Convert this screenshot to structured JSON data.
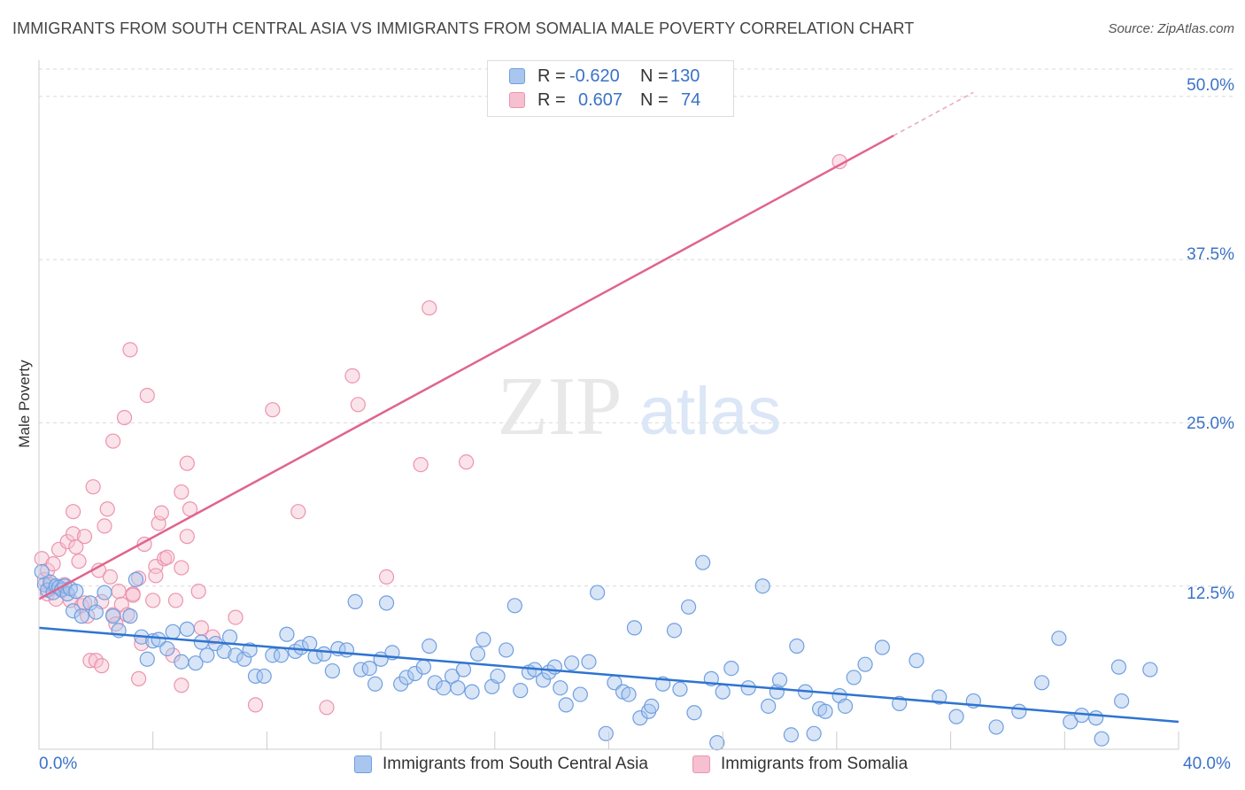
{
  "title": "IMMIGRANTS FROM SOUTH CENTRAL ASIA VS IMMIGRANTS FROM SOMALIA MALE POVERTY CORRELATION CHART",
  "source": "Source: ZipAtlas.com",
  "watermark": {
    "zip": "ZIP",
    "atlas": "atlas"
  },
  "legend": {
    "rows": [
      {
        "r_label": "R =",
        "r_value": "-0.620",
        "n_label": "N =",
        "n_value": "130"
      },
      {
        "r_label": "R =",
        "r_value": "0.607",
        "n_label": "N =",
        "n_value": "74"
      }
    ]
  },
  "colors": {
    "blue_fill": "#a9c6ee",
    "blue_stroke": "#6f9fe0",
    "blue_line": "#2f74d0",
    "pink_fill": "#f6c0d0",
    "pink_stroke": "#ec94b0",
    "pink_line": "#e0648e",
    "grid": "#d9d9d9",
    "tick_text": "#3a72c8"
  },
  "chart_data": {
    "type": "scatter",
    "title": "IMMIGRANTS FROM SOUTH CENTRAL ASIA VS IMMIGRANTS FROM SOMALIA MALE POVERTY CORRELATION CHART",
    "xlabel": "",
    "ylabel": "Male Poverty",
    "xlim": [
      0,
      40
    ],
    "ylim": [
      0,
      52.5
    ],
    "x_tick_labels": [
      "0.0%",
      "40.0%"
    ],
    "y_ticks": [
      12.5,
      25.0,
      37.5,
      50.0
    ],
    "y_tick_labels": [
      "12.5%",
      "25.0%",
      "37.5%",
      "50.0%"
    ],
    "grid": true,
    "legend_placement": "bottom",
    "series": [
      {
        "name": "Immigrants from South Central Asia",
        "color": "#6f9fe0",
        "trend": {
          "x0": 0,
          "y0": 9.3,
          "x1": 40,
          "y1": 2.1
        },
        "points": [
          [
            0.1,
            13.6
          ],
          [
            0.2,
            12.6
          ],
          [
            0.3,
            12.2
          ],
          [
            0.4,
            12.8
          ],
          [
            0.5,
            12.0
          ],
          [
            0.6,
            12.5
          ],
          [
            0.7,
            12.4
          ],
          [
            0.8,
            12.2
          ],
          [
            0.9,
            12.5
          ],
          [
            1.0,
            11.9
          ],
          [
            1.1,
            12.3
          ],
          [
            1.3,
            12.1
          ],
          [
            1.2,
            10.6
          ],
          [
            1.5,
            10.2
          ],
          [
            1.8,
            11.2
          ],
          [
            2.0,
            10.5
          ],
          [
            2.3,
            12.0
          ],
          [
            2.6,
            10.2
          ],
          [
            2.8,
            9.1
          ],
          [
            3.2,
            10.2
          ],
          [
            3.4,
            13.0
          ],
          [
            3.6,
            8.6
          ],
          [
            3.8,
            6.9
          ],
          [
            4.0,
            8.3
          ],
          [
            4.2,
            8.4
          ],
          [
            4.5,
            7.7
          ],
          [
            4.7,
            9.0
          ],
          [
            5.0,
            6.7
          ],
          [
            5.2,
            9.2
          ],
          [
            5.5,
            6.6
          ],
          [
            5.7,
            8.2
          ],
          [
            5.9,
            7.2
          ],
          [
            6.2,
            8.1
          ],
          [
            6.5,
            7.5
          ],
          [
            6.7,
            8.6
          ],
          [
            6.9,
            7.2
          ],
          [
            7.2,
            6.9
          ],
          [
            7.4,
            7.6
          ],
          [
            7.6,
            5.6
          ],
          [
            7.9,
            5.6
          ],
          [
            8.2,
            7.2
          ],
          [
            8.5,
            7.2
          ],
          [
            8.7,
            8.8
          ],
          [
            9.0,
            7.5
          ],
          [
            9.2,
            7.8
          ],
          [
            9.5,
            8.1
          ],
          [
            9.7,
            7.1
          ],
          [
            10.0,
            7.3
          ],
          [
            10.3,
            6.0
          ],
          [
            10.5,
            7.7
          ],
          [
            10.8,
            7.6
          ],
          [
            11.1,
            11.3
          ],
          [
            11.3,
            6.1
          ],
          [
            11.6,
            6.2
          ],
          [
            11.8,
            5.0
          ],
          [
            12.0,
            6.9
          ],
          [
            12.2,
            11.2
          ],
          [
            12.4,
            7.4
          ],
          [
            12.7,
            5.0
          ],
          [
            12.9,
            5.5
          ],
          [
            13.2,
            5.8
          ],
          [
            13.5,
            6.3
          ],
          [
            13.7,
            7.9
          ],
          [
            13.9,
            5.1
          ],
          [
            14.2,
            4.7
          ],
          [
            14.5,
            5.6
          ],
          [
            14.7,
            4.7
          ],
          [
            14.9,
            6.1
          ],
          [
            15.2,
            4.4
          ],
          [
            15.4,
            7.3
          ],
          [
            15.6,
            8.4
          ],
          [
            15.9,
            4.8
          ],
          [
            16.1,
            5.6
          ],
          [
            16.4,
            7.6
          ],
          [
            16.7,
            11.0
          ],
          [
            16.9,
            4.5
          ],
          [
            17.2,
            5.9
          ],
          [
            17.4,
            6.1
          ],
          [
            17.7,
            5.3
          ],
          [
            17.9,
            5.9
          ],
          [
            18.1,
            6.3
          ],
          [
            18.3,
            4.7
          ],
          [
            18.5,
            3.4
          ],
          [
            18.7,
            6.6
          ],
          [
            19.0,
            4.2
          ],
          [
            19.3,
            6.7
          ],
          [
            19.6,
            12.0
          ],
          [
            19.9,
            1.2
          ],
          [
            20.2,
            5.1
          ],
          [
            20.5,
            4.4
          ],
          [
            20.7,
            4.2
          ],
          [
            20.9,
            9.3
          ],
          [
            21.1,
            2.4
          ],
          [
            21.4,
            2.9
          ],
          [
            21.5,
            3.3
          ],
          [
            21.9,
            5.0
          ],
          [
            22.3,
            9.1
          ],
          [
            22.5,
            4.6
          ],
          [
            22.8,
            10.9
          ],
          [
            23.0,
            2.8
          ],
          [
            23.3,
            14.3
          ],
          [
            23.6,
            5.4
          ],
          [
            23.8,
            0.5
          ],
          [
            24.0,
            4.4
          ],
          [
            24.3,
            6.2
          ],
          [
            24.9,
            4.7
          ],
          [
            25.4,
            12.5
          ],
          [
            25.6,
            3.3
          ],
          [
            25.9,
            4.4
          ],
          [
            26.0,
            5.3
          ],
          [
            26.9,
            4.4
          ],
          [
            26.4,
            1.1
          ],
          [
            26.6,
            7.9
          ],
          [
            27.2,
            1.2
          ],
          [
            27.4,
            3.1
          ],
          [
            27.6,
            2.9
          ],
          [
            28.1,
            4.1
          ],
          [
            28.3,
            3.3
          ],
          [
            28.6,
            5.5
          ],
          [
            29.0,
            6.5
          ],
          [
            29.6,
            7.8
          ],
          [
            30.2,
            3.5
          ],
          [
            30.8,
            6.8
          ],
          [
            31.6,
            4.0
          ],
          [
            32.2,
            2.5
          ],
          [
            32.8,
            3.7
          ],
          [
            33.6,
            1.7
          ],
          [
            34.4,
            2.9
          ],
          [
            35.2,
            5.1
          ],
          [
            35.8,
            8.5
          ],
          [
            36.2,
            2.1
          ],
          [
            36.6,
            2.6
          ],
          [
            37.1,
            2.4
          ],
          [
            37.3,
            0.8
          ],
          [
            37.9,
            6.3
          ],
          [
            38.0,
            3.7
          ],
          [
            39.0,
            6.1
          ]
        ]
      },
      {
        "name": "Immigrants from Somalia",
        "color": "#ec94b0",
        "trend": {
          "x0": 0,
          "y0": 11.5,
          "x1": 30,
          "y1": 47.0
        },
        "points": [
          [
            0.1,
            14.6
          ],
          [
            0.2,
            13.0
          ],
          [
            0.3,
            11.9
          ],
          [
            0.4,
            12.6
          ],
          [
            0.3,
            13.7
          ],
          [
            0.5,
            14.2
          ],
          [
            0.6,
            11.5
          ],
          [
            0.7,
            15.3
          ],
          [
            0.8,
            12.3
          ],
          [
            0.9,
            12.6
          ],
          [
            1.0,
            15.9
          ],
          [
            1.1,
            11.4
          ],
          [
            1.2,
            16.5
          ],
          [
            1.3,
            15.5
          ],
          [
            1.4,
            14.4
          ],
          [
            1.2,
            18.2
          ],
          [
            1.5,
            11.0
          ],
          [
            1.6,
            16.3
          ],
          [
            1.6,
            11.2
          ],
          [
            1.7,
            10.2
          ],
          [
            1.8,
            6.8
          ],
          [
            1.9,
            20.1
          ],
          [
            2.0,
            6.8
          ],
          [
            2.1,
            13.7
          ],
          [
            2.2,
            6.4
          ],
          [
            2.2,
            11.3
          ],
          [
            2.3,
            17.1
          ],
          [
            2.4,
            18.4
          ],
          [
            2.5,
            13.2
          ],
          [
            2.6,
            10.3
          ],
          [
            2.6,
            23.6
          ],
          [
            2.7,
            9.6
          ],
          [
            2.8,
            12.1
          ],
          [
            2.9,
            11.1
          ],
          [
            3.0,
            25.4
          ],
          [
            3.2,
            30.6
          ],
          [
            3.1,
            10.3
          ],
          [
            3.3,
            11.9
          ],
          [
            3.3,
            11.8
          ],
          [
            3.5,
            13.1
          ],
          [
            3.5,
            5.4
          ],
          [
            3.6,
            8.1
          ],
          [
            3.7,
            15.7
          ],
          [
            3.8,
            27.1
          ],
          [
            4.0,
            11.4
          ],
          [
            4.1,
            14.0
          ],
          [
            4.1,
            13.3
          ],
          [
            4.2,
            17.3
          ],
          [
            4.3,
            18.1
          ],
          [
            4.4,
            14.6
          ],
          [
            4.5,
            14.7
          ],
          [
            4.7,
            7.2
          ],
          [
            4.8,
            11.4
          ],
          [
            5.0,
            13.9
          ],
          [
            5.0,
            19.7
          ],
          [
            5.0,
            4.9
          ],
          [
            5.2,
            21.9
          ],
          [
            5.3,
            18.4
          ],
          [
            5.2,
            16.3
          ],
          [
            5.6,
            12.1
          ],
          [
            5.7,
            9.3
          ],
          [
            6.1,
            8.6
          ],
          [
            6.9,
            10.1
          ],
          [
            7.6,
            3.4
          ],
          [
            8.2,
            26.0
          ],
          [
            9.1,
            18.2
          ],
          [
            10.1,
            3.2
          ],
          [
            11.0,
            28.6
          ],
          [
            11.2,
            26.4
          ],
          [
            12.2,
            13.2
          ],
          [
            13.4,
            21.8
          ],
          [
            13.7,
            33.8
          ],
          [
            15.0,
            22.0
          ],
          [
            28.1,
            45.0
          ]
        ]
      }
    ]
  },
  "bottom_legend": [
    {
      "label": "Immigrants from South Central Asia"
    },
    {
      "label": "Immigrants from Somalia"
    }
  ],
  "axes": {
    "x_left_label": "0.0%",
    "x_right_label": "40.0%",
    "y_title": "Male Poverty",
    "y_ticks": [
      "50.0%",
      "37.5%",
      "25.0%",
      "12.5%"
    ]
  }
}
